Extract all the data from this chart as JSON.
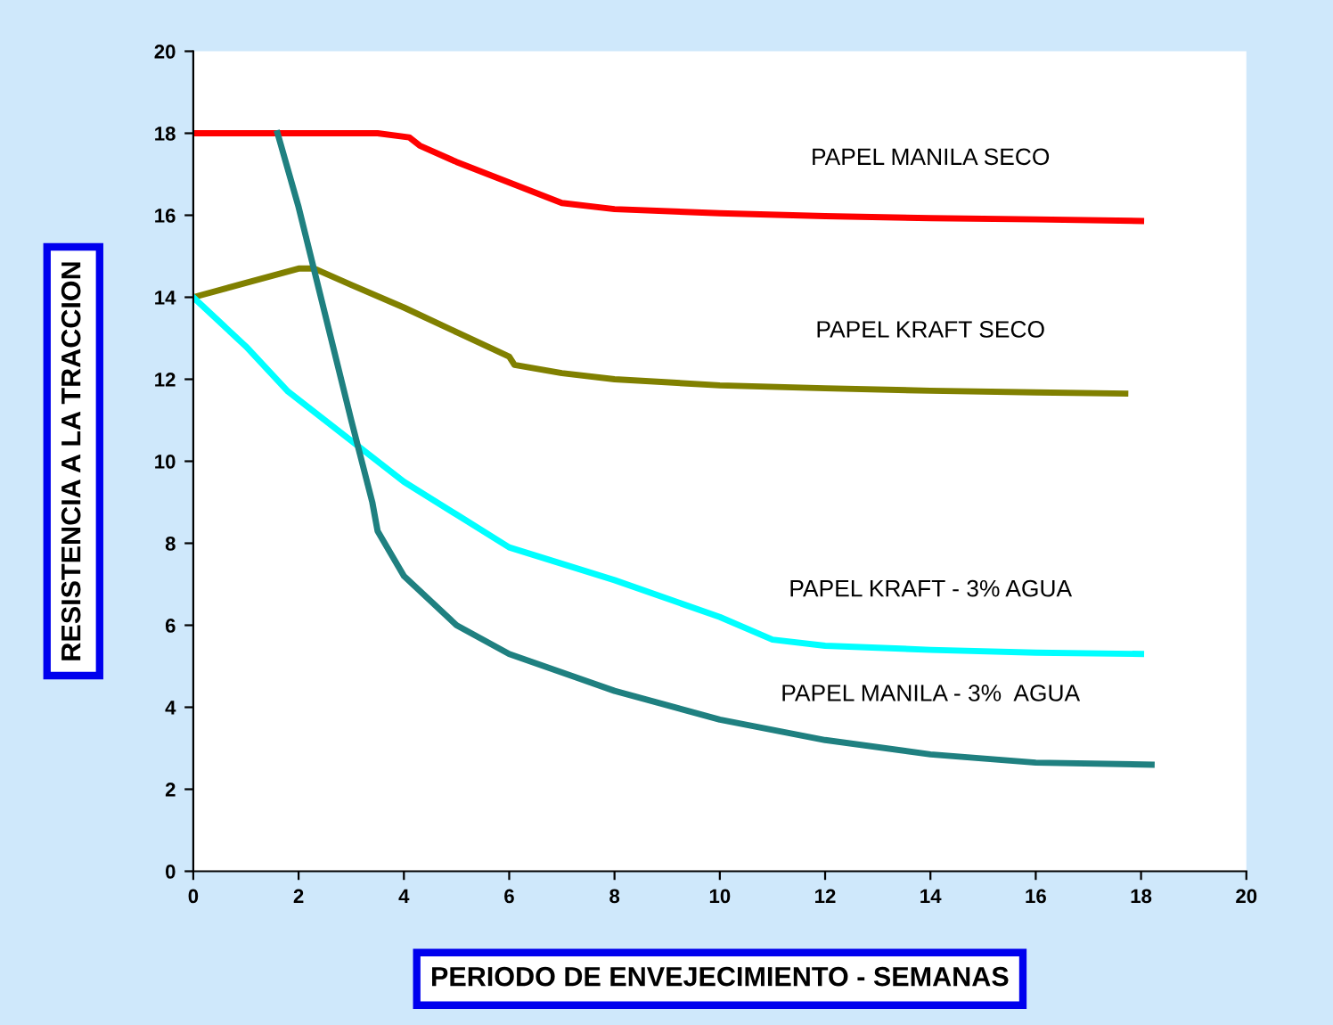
{
  "chart_data": {
    "type": "line",
    "xlabel": "PERIODO DE ENVEJECIMIENTO - SEMANAS",
    "ylabel": "RESISTENCIA A LA TRACCION",
    "xlim": [
      0,
      20
    ],
    "ylim": [
      0,
      20
    ],
    "xticks": [
      0,
      2,
      4,
      6,
      8,
      10,
      12,
      14,
      16,
      18,
      20
    ],
    "yticks": [
      0,
      2,
      4,
      6,
      8,
      10,
      12,
      14,
      16,
      18,
      20
    ],
    "grid": false,
    "legend": false,
    "marker": "none",
    "line_style": "solid",
    "series": [
      {
        "name": "PAPEL MANILA SECO",
        "color": "#ff0000",
        "x": [
          0,
          2,
          3.5,
          4.1,
          4.3,
          5,
          6,
          7,
          8,
          10,
          12,
          14,
          16,
          18
        ],
        "values": [
          18,
          18,
          18,
          17.9,
          17.7,
          17.3,
          16.8,
          16.3,
          16.15,
          16.05,
          15.98,
          15.93,
          15.9,
          15.86
        ]
      },
      {
        "name": "PAPEL KRAFT SECO",
        "color": "#808000",
        "x": [
          0,
          1,
          2,
          2.3,
          3,
          4,
          5,
          6,
          6.1,
          7,
          8,
          10,
          12,
          14,
          16,
          17.7
        ],
        "values": [
          14,
          14.35,
          14.7,
          14.7,
          14.3,
          13.75,
          13.15,
          12.55,
          12.35,
          12.15,
          12.0,
          11.85,
          11.78,
          11.72,
          11.68,
          11.65
        ]
      },
      {
        "name": "PAPEL KRAFT - 3% AGUA",
        "color": "#00ffff",
        "x": [
          0,
          1,
          1.8,
          3,
          4,
          5,
          6,
          8,
          10,
          11,
          12,
          14,
          16,
          18
        ],
        "values": [
          14,
          12.8,
          11.7,
          10.5,
          9.5,
          8.7,
          7.9,
          7.1,
          6.2,
          5.65,
          5.5,
          5.4,
          5.33,
          5.3
        ]
      },
      {
        "name": "PAPEL MANILA - 3%  AGUA",
        "color": "#1f8080",
        "x": [
          1.6,
          2,
          2.5,
          3,
          3.4,
          3.5,
          4,
          5,
          6,
          8,
          10,
          12,
          14,
          16,
          18.2
        ],
        "values": [
          18,
          16.2,
          13.6,
          11.0,
          9.0,
          8.3,
          7.2,
          6.0,
          5.3,
          4.4,
          3.7,
          3.2,
          2.85,
          2.65,
          2.6
        ]
      }
    ]
  }
}
